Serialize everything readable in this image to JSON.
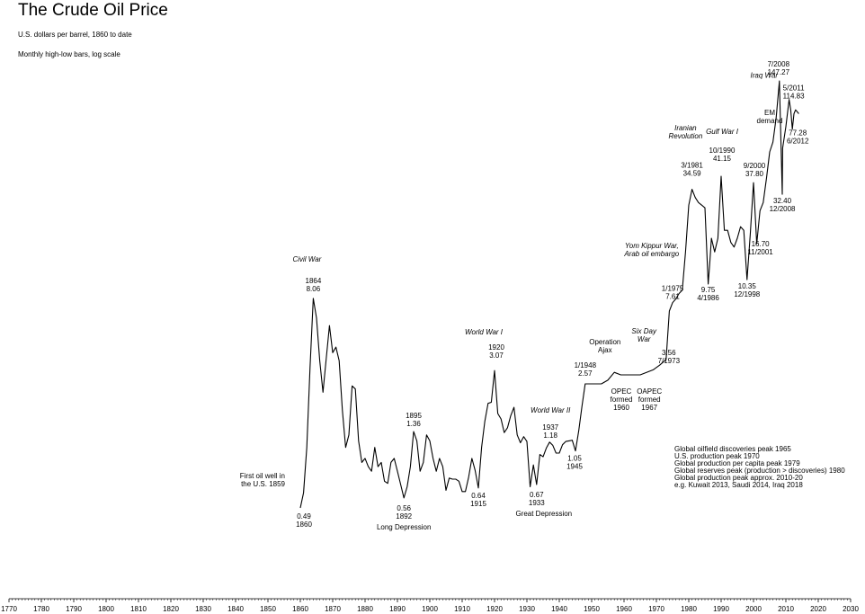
{
  "chart_data": {
    "type": "line",
    "title": "The Crude Oil Price",
    "subtitle_1": "U.S. dollars per barrel, 1860 to date",
    "subtitle_2": "Monthly high-low bars, log scale",
    "y_scale": "log",
    "ylim": [
      0.3,
      200
    ],
    "xlim": [
      1770,
      2030
    ],
    "x_ticks": [
      "1770",
      "1780",
      "1790",
      "1800",
      "1810",
      "1820",
      "1830",
      "1840",
      "1850",
      "1860",
      "1870",
      "1880",
      "1890",
      "1900",
      "1910",
      "1920",
      "1930",
      "1940",
      "1950",
      "1960",
      "1970",
      "1980",
      "1990",
      "2000",
      "2010",
      "2020",
      "2030"
    ],
    "grid": false,
    "series": [
      {
        "points": [
          [
            1860,
            0.49
          ],
          [
            1861,
            0.6
          ],
          [
            1862,
            1.1
          ],
          [
            1863,
            3.2
          ],
          [
            1864,
            8.06
          ],
          [
            1865,
            6.2
          ],
          [
            1866,
            3.5
          ],
          [
            1867,
            2.3
          ],
          [
            1868,
            3.6
          ],
          [
            1869,
            5.6
          ],
          [
            1870,
            3.9
          ],
          [
            1871,
            4.2
          ],
          [
            1872,
            3.5
          ],
          [
            1873,
            1.8
          ],
          [
            1874,
            1.1
          ],
          [
            1875,
            1.3
          ],
          [
            1876,
            2.5
          ],
          [
            1877,
            2.4
          ],
          [
            1878,
            1.2
          ],
          [
            1879,
            0.9
          ],
          [
            1880,
            0.95
          ],
          [
            1881,
            0.85
          ],
          [
            1882,
            0.8
          ],
          [
            1883,
            1.1
          ],
          [
            1884,
            0.85
          ],
          [
            1885,
            0.9
          ],
          [
            1886,
            0.7
          ],
          [
            1887,
            0.68
          ],
          [
            1888,
            0.9
          ],
          [
            1889,
            0.95
          ],
          [
            1890,
            0.8
          ],
          [
            1891,
            0.67
          ],
          [
            1892,
            0.56
          ],
          [
            1893,
            0.65
          ],
          [
            1894,
            0.85
          ],
          [
            1895,
            1.36
          ],
          [
            1896,
            1.2
          ],
          [
            1897,
            0.8
          ],
          [
            1898,
            0.9
          ],
          [
            1899,
            1.3
          ],
          [
            1900,
            1.2
          ],
          [
            1901,
            0.95
          ],
          [
            1902,
            0.8
          ],
          [
            1903,
            0.95
          ],
          [
            1904,
            0.85
          ],
          [
            1905,
            0.62
          ],
          [
            1906,
            0.73
          ],
          [
            1907,
            0.72
          ],
          [
            1908,
            0.72
          ],
          [
            1909,
            0.7
          ],
          [
            1910,
            0.61
          ],
          [
            1911,
            0.61
          ],
          [
            1912,
            0.74
          ],
          [
            1913,
            0.95
          ],
          [
            1914,
            0.81
          ],
          [
            1915,
            0.64
          ],
          [
            1916,
            1.1
          ],
          [
            1917,
            1.56
          ],
          [
            1918,
            1.98
          ],
          [
            1919,
            2.01
          ],
          [
            1920,
            3.07
          ],
          [
            1921,
            1.73
          ],
          [
            1922,
            1.61
          ],
          [
            1923,
            1.34
          ],
          [
            1924,
            1.43
          ],
          [
            1925,
            1.68
          ],
          [
            1926,
            1.88
          ],
          [
            1927,
            1.3
          ],
          [
            1928,
            1.17
          ],
          [
            1929,
            1.27
          ],
          [
            1930,
            1.19
          ],
          [
            1931,
            0.65
          ],
          [
            1932,
            0.87
          ],
          [
            1933,
            0.67
          ],
          [
            1934,
            1.0
          ],
          [
            1935,
            0.97
          ],
          [
            1936,
            1.09
          ],
          [
            1937,
            1.18
          ],
          [
            1938,
            1.13
          ],
          [
            1939,
            1.02
          ],
          [
            1940,
            1.02
          ],
          [
            1941,
            1.14
          ],
          [
            1942,
            1.19
          ],
          [
            1943,
            1.2
          ],
          [
            1944,
            1.21
          ],
          [
            1945,
            1.05
          ],
          [
            1946,
            1.37
          ],
          [
            1947,
            1.9
          ],
          [
            1948,
            2.57
          ],
          [
            1950,
            2.57
          ],
          [
            1953,
            2.57
          ],
          [
            1955,
            2.7
          ],
          [
            1957,
            3.0
          ],
          [
            1959,
            2.9
          ],
          [
            1960,
            2.9
          ],
          [
            1965,
            2.9
          ],
          [
            1969,
            3.1
          ],
          [
            1971,
            3.3
          ],
          [
            1973,
            3.56
          ],
          [
            1974,
            6.8
          ],
          [
            1975,
            7.61
          ],
          [
            1976,
            8.0
          ],
          [
            1977,
            8.6
          ],
          [
            1978,
            9.0
          ],
          [
            1979,
            15.0
          ],
          [
            1980,
            28.0
          ],
          [
            1981,
            34.59
          ],
          [
            1982,
            31.0
          ],
          [
            1983,
            29.0
          ],
          [
            1984,
            28.0
          ],
          [
            1985,
            27.0
          ],
          [
            1986,
            9.75
          ],
          [
            1986.5,
            13.0
          ],
          [
            1987,
            18.0
          ],
          [
            1988,
            15.0
          ],
          [
            1989,
            18.0
          ],
          [
            1990,
            41.15
          ],
          [
            1991,
            20.0
          ],
          [
            1992,
            20.0
          ],
          [
            1993,
            17.0
          ],
          [
            1994,
            16.0
          ],
          [
            1995,
            18.0
          ],
          [
            1996,
            21.0
          ],
          [
            1997,
            20.0
          ],
          [
            1998,
            10.35
          ],
          [
            1999,
            19.0
          ],
          [
            2000,
            37.8
          ],
          [
            2001,
            16.7
          ],
          [
            2002,
            26.0
          ],
          [
            2003,
            29.0
          ],
          [
            2004,
            40.0
          ],
          [
            2005,
            57.0
          ],
          [
            2006,
            65.0
          ],
          [
            2007,
            90.0
          ],
          [
            2008,
            147.27
          ],
          [
            2008.9,
            32.4
          ],
          [
            2009,
            60.0
          ],
          [
            2010,
            80.0
          ],
          [
            2011,
            114.83
          ],
          [
            2011.5,
            100.0
          ],
          [
            2012,
            77.28
          ],
          [
            2012.5,
            95.0
          ],
          [
            2013,
            100.0
          ],
          [
            2014,
            95.0
          ]
        ]
      }
    ],
    "annotations": {
      "first_well": [
        "First oil well in",
        "the U.S. 1859"
      ],
      "low_1860": [
        "0.49",
        "1860"
      ],
      "civil_war": "Civil War",
      "peak_1864": [
        "1864",
        "8.06"
      ],
      "low_1892": [
        "0.56",
        "1892"
      ],
      "long_depression": "Long Depression",
      "peak_1895": [
        "1895",
        "1.36"
      ],
      "low_1915": [
        "0.64",
        "1915"
      ],
      "ww1": "World War I",
      "peak_1920": [
        "1920",
        "3.07"
      ],
      "low_1933": [
        "0.67",
        "1933"
      ],
      "great_depression": "Great Depression",
      "ww2": "World War II",
      "peak_1937": [
        "1937",
        "1.18"
      ],
      "low_1945": [
        "1.05",
        "1945"
      ],
      "peak_1948": [
        "1/1948",
        "2.57"
      ],
      "operation_ajax": [
        "Operation",
        "Ajax"
      ],
      "opec_formed": [
        "OPEC",
        "formed",
        "1960"
      ],
      "six_day_war": [
        "Six Day",
        "War"
      ],
      "oapec_formed": [
        "OAPEC",
        "formed",
        "1967"
      ],
      "low_1973": [
        "3.56",
        "7/1973"
      ],
      "yom_kippur": [
        "Yom Kippur War,",
        "Arab oil embargo"
      ],
      "peak_1975": [
        "1/1975",
        "7.61"
      ],
      "iranian_revolution": [
        "Iranian",
        "Revolution"
      ],
      "peak_1981": [
        "3/1981",
        "34.59"
      ],
      "low_1986": [
        "9.75",
        "4/1986"
      ],
      "gulf_war": "Gulf War I",
      "peak_1990": [
        "10/1990",
        "41.15"
      ],
      "low_1998": [
        "10.35",
        "12/1998"
      ],
      "peak_2000": [
        "9/2000",
        "37.80"
      ],
      "low_2001": [
        "16.70",
        "11/2001"
      ],
      "em_demand": [
        "EM",
        "demand"
      ],
      "iraq_war": "Iraq War",
      "peak_2008": [
        "7/2008",
        "147.27"
      ],
      "low_2008": [
        "32.40",
        "12/2008"
      ],
      "peak_2011": [
        "5/2011",
        "114.83"
      ],
      "point_2012": [
        "77.28",
        "6/2012"
      ],
      "peak_notes": [
        "Global oilfield discoveries peak 1965",
        "U.S. production peak 1970",
        "Global production per capita peak 1979",
        "Global reserves peak (production > discoveries) 1980",
        "Global production peak approx. 2010-20",
        "e.g. Kuwait 2013, Saudi 2014, Iraq 2018"
      ]
    }
  }
}
